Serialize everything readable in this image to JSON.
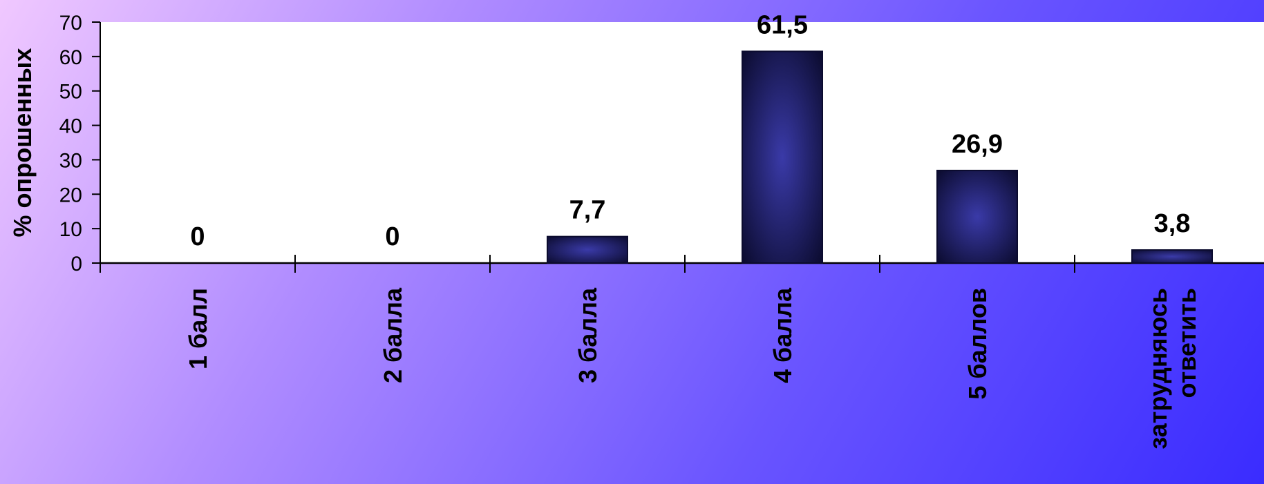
{
  "chart_data": {
    "type": "bar",
    "categories": [
      "1 балл",
      "2 балла",
      "3 балла",
      "4 балла",
      "5 баллов",
      "затрудняюсь ответить"
    ],
    "category_lines": [
      [
        "1 балл"
      ],
      [
        "2 балла"
      ],
      [
        "3 балла"
      ],
      [
        "4 балла"
      ],
      [
        "5 баллов"
      ],
      [
        "затрудняюсь",
        "ответить"
      ]
    ],
    "values": [
      0,
      0,
      7.7,
      61.5,
      26.9,
      3.8
    ],
    "value_labels": [
      "0",
      "0",
      "7,7",
      "61,5",
      "26,9",
      "3,8"
    ],
    "ylabel": "% опрошенных",
    "ylim": [
      0,
      70
    ],
    "yticks": [
      0,
      10,
      20,
      30,
      40,
      50,
      60,
      70
    ],
    "grid": false,
    "legend": "none",
    "colors": {
      "plot_background": "#ffffff",
      "bar_center": "#3a3aa8",
      "bar_edge": "#0b0b2e",
      "axis": "#000000"
    }
  }
}
